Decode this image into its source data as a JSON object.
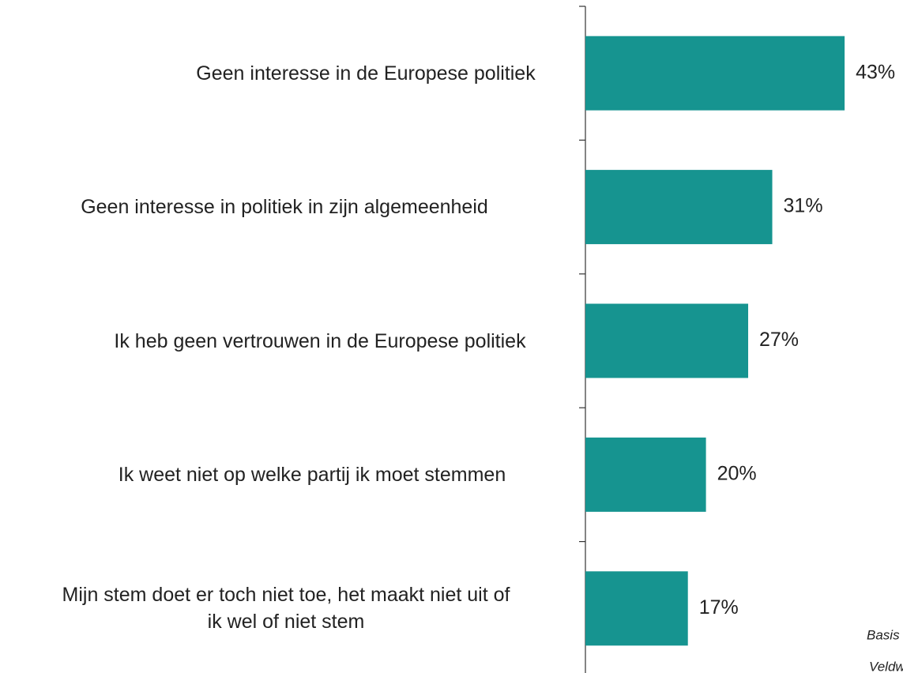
{
  "chart_data": {
    "type": "bar",
    "orientation": "horizontal",
    "categories": [
      "Geen interesse in de Europese politiek",
      "Geen interesse in politiek in zijn algemeenheid",
      "Ik heb geen vertrouwen in de Europese politiek",
      "Ik weet niet op welke partij ik moet stemmen",
      "Mijn stem doet er toch niet toe, het maakt niet uit of\nik wel of niet stem"
    ],
    "values": [
      43,
      31,
      27,
      20,
      17
    ],
    "value_labels": [
      "43%",
      "31%",
      "27%",
      "20%",
      "17%"
    ],
    "color": "#169490",
    "annotations": [
      "Basis",
      "Veldw"
    ]
  }
}
